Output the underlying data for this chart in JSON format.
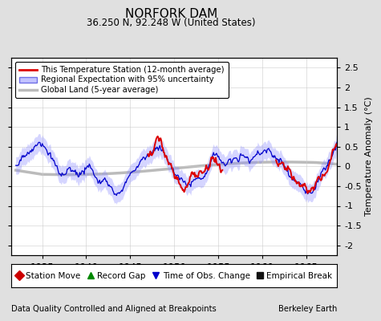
{
  "title": "NORFORK DAM",
  "subtitle": "36.250 N, 92.248 W (United States)",
  "xlabel_left": "Data Quality Controlled and Aligned at Breakpoints",
  "xlabel_right": "Berkeley Earth",
  "ylabel": "Temperature Anomaly (°C)",
  "ylim": [
    -2.25,
    2.75
  ],
  "xlim": [
    1931.5,
    1968.5
  ],
  "xticks": [
    1935,
    1940,
    1945,
    1950,
    1955,
    1960,
    1965
  ],
  "yticks_right": [
    -2,
    -1.5,
    -1,
    -0.5,
    0,
    0.5,
    1,
    1.5,
    2,
    2.5
  ],
  "bg_color": "#e0e0e0",
  "plot_bg_color": "#ffffff",
  "regional_fill_color": "#8888ff",
  "regional_line_color": "#0000cc",
  "station_line_color": "#dd0000",
  "global_line_color": "#bbbbbb",
  "seed": 17
}
